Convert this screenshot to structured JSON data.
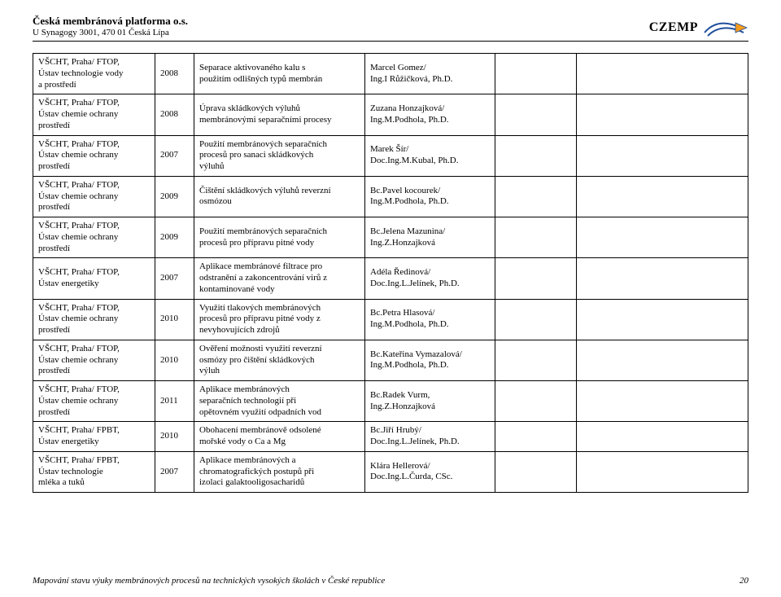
{
  "header": {
    "org_name": "Česká membránová platforma o.s.",
    "org_addr": "U Synagogy 3001, 470 01 Česká Lípa",
    "logo_text": "CZEMP",
    "logo_colors": {
      "blue": "#1f4e9c",
      "orange": "#f59b1d"
    }
  },
  "rows": [
    {
      "inst": "VŠCHT, Praha/ FTOP,\nÚstav technologie vody\na prostředí",
      "year": "2008",
      "title": "Separace aktivovaného kalu s\npoužitím odlišných typů membrán",
      "author": "Marcel Gomez/\nIng.I Růžičková, Ph.D."
    },
    {
      "inst": "VŠCHT, Praha/ FTOP,\nÚstav chemie ochrany\nprostředí",
      "year": "2008",
      "title": "Úprava skládkových výluhů\nmembránovými separačními procesy",
      "author": "Zuzana Honzajková/\nIng.M.Podhola, Ph.D."
    },
    {
      "inst": "VŠCHT, Praha/ FTOP,\nÚstav chemie ochrany\nprostředí",
      "year": "2007",
      "title": "Použití membránových separačních\nprocesů pro sanaci skládkových\nvýluhů",
      "author": "Marek Šír/\nDoc.Ing.M.Kubal, Ph.D."
    },
    {
      "inst": "VŠCHT, Praha/ FTOP,\nÚstav chemie ochrany\nprostředí",
      "year": "2009",
      "title": "Čištění skládkových výluhů reverzní\nosmózou",
      "author": "Bc.Pavel kocourek/\nIng.M.Podhola, Ph.D."
    },
    {
      "inst": "VŠCHT, Praha/ FTOP,\nÚstav chemie ochrany\nprostředí",
      "year": "2009",
      "title": "Použití membránových separačních\nprocesů pro přípravu pitné vody",
      "author": "Bc.Jelena Mazunina/\nIng.Z.Honzajková"
    },
    {
      "inst": "VŠCHT, Praha/ FTOP,\nÚstav energetiky",
      "year": "2007",
      "title": "Aplikace membránové filtrace pro\nodstranění a zakoncentrování virů z\nkontaminované vody",
      "author": "Adéla Ředinová/\nDoc.Ing.L.Jelínek, Ph.D."
    },
    {
      "inst": "VŠCHT, Praha/ FTOP,\nÚstav chemie ochrany\nprostředí",
      "year": "2010",
      "title": "Využití tlakových membránových\nprocesů pro přípravu pitné vody z\nnevyhovujících zdrojů",
      "author": "Bc.Petra Hlasová/\nIng.M.Podhola, Ph.D."
    },
    {
      "inst": "VŠCHT, Praha/ FTOP,\nÚstav chemie ochrany\nprostředí",
      "year": "2010",
      "title": "Ověření možnosti využití reverzní\nosmózy pro čištění skládkových\nvýluh",
      "author": "Bc.Kateřina Vymazalová/\nIng.M.Podhola, Ph.D."
    },
    {
      "inst": "VŠCHT, Praha/ FTOP,\nÚstav chemie ochrany\nprostředí",
      "year": "2011",
      "title": "Aplikace membránových\nseparačních technologií při\nopětovném využití odpadních vod",
      "author": "Bc.Radek Vurm,\nIng.Z.Honzajková"
    },
    {
      "inst": "VŠCHT, Praha/ FPBT,\nÚstav energetiky",
      "year": "2010",
      "title": "Obohacení membránově odsolené\nmořské vody o Ca a Mg",
      "author": "Bc.Jiří Hrubý/\nDoc.Ing.L.Jelínek, Ph.D."
    },
    {
      "inst": "VŠCHT, Praha/ FPBT,\nÚstav technologie\nmléka a tuků",
      "year": "2007",
      "title": "Aplikace membránových a\nchromatografických postupů při\nizolaci galaktooligosacharidů",
      "author": "Klára Hellerová/\nDoc.Ing.L.Čurda, CSc."
    }
  ],
  "footer": {
    "text": "Mapování stavu výuky membránových procesů na technických vysokých školách v České republice",
    "page": "20"
  }
}
